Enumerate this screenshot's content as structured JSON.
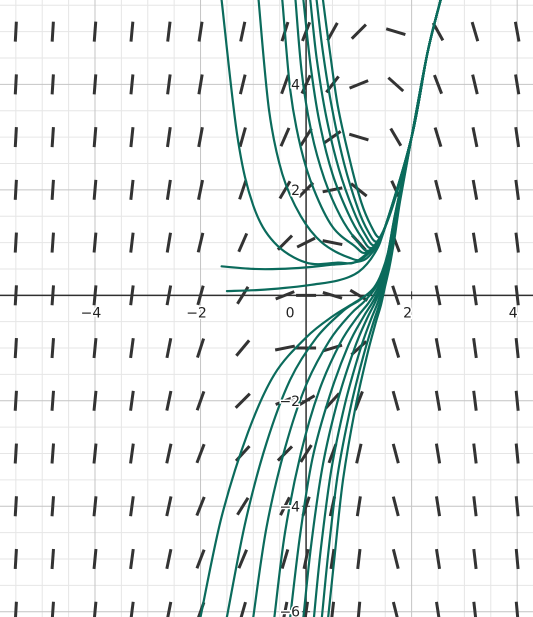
{
  "colors": {
    "background": "#ffffff",
    "minor_grid": "#e6e6e6",
    "major_grid": "#c4c4c4",
    "axis": "#303030",
    "slope_segment": "#333333",
    "solution_curve": "#0b6b5c"
  },
  "chart_data": {
    "type": "line",
    "title": "",
    "xlabel": "",
    "ylabel": "",
    "xlim": [
      -5.8,
      4.3
    ],
    "ylim": [
      -6.1,
      5.6
    ],
    "grid": true,
    "minor_grid_step": 0.5,
    "major_grid_step": 2,
    "x_ticks": [
      -4,
      -2,
      0,
      2,
      4
    ],
    "y_ticks": [
      -6,
      -4,
      -2,
      2,
      4
    ],
    "x_tick_labels": [
      "−4",
      "−2",
      "0",
      "2",
      "4"
    ],
    "y_tick_labels": [
      "−6",
      "−4",
      "−2",
      "2",
      "4"
    ],
    "slope_field": {
      "columns_x": [
        -5.5,
        -4.8,
        -4.0,
        -3.3,
        -2.6,
        -2.0,
        -1.2,
        -0.4,
        0.0,
        0.5,
        1.0,
        1.7,
        2.5,
        3.2,
        4.0
      ],
      "rows_y": [
        5.0,
        4.0,
        3.0,
        2.0,
        1.0,
        0.0,
        -1.0,
        -2.0,
        -3.0,
        -4.0,
        -5.0,
        -6.0
      ],
      "slopes": [
        [
          18.9,
          16.5,
          13.5,
          10.8,
          8.4,
          6.6,
          4.7,
          3.2,
          2.6,
          1.8,
          1.0,
          -0.3,
          -1.8,
          -3.4,
          -5.5
        ],
        [
          18.4,
          15.9,
          12.9,
          10.2,
          7.8,
          6.0,
          4.1,
          2.8,
          2.2,
          1.3,
          0.4,
          -0.9,
          -2.6,
          -4.2,
          -6.2
        ],
        [
          17.9,
          15.3,
          12.3,
          9.6,
          7.2,
          5.4,
          3.6,
          2.3,
          1.6,
          0.7,
          -0.3,
          -1.7,
          -3.3,
          -5.0,
          -7.0
        ],
        [
          17.5,
          14.8,
          11.8,
          9.0,
          6.6,
          4.8,
          3.0,
          1.7,
          1.0,
          0.2,
          -0.8,
          -2.2,
          -3.9,
          -5.6,
          -7.7
        ],
        [
          17.1,
          14.3,
          11.3,
          8.4,
          6.0,
          4.2,
          2.3,
          1.0,
          0.5,
          -0.2,
          -1.1,
          -2.6,
          -4.4,
          -6.3,
          -8.4
        ],
        [
          16.7,
          13.9,
          10.8,
          7.9,
          5.5,
          3.6,
          1.6,
          0.4,
          0.0,
          -0.3,
          -0.6,
          -3.0,
          -5.0,
          -6.9,
          -9.1
        ],
        [
          16.5,
          13.6,
          10.5,
          7.5,
          5.1,
          3.1,
          1.2,
          0.2,
          0.0,
          0.3,
          0.9,
          -3.3,
          -5.5,
          -7.4,
          -9.6
        ],
        [
          16.4,
          13.4,
          10.3,
          7.3,
          4.8,
          2.8,
          1.0,
          0.4,
          0.6,
          1.1,
          2.6,
          -3.6,
          -5.9,
          -7.9,
          -10.1
        ],
        [
          16.5,
          13.4,
          10.2,
          7.2,
          4.6,
          2.6,
          1.1,
          1.0,
          1.6,
          2.7,
          4.4,
          -3.8,
          -6.2,
          -8.2,
          -10.5
        ],
        [
          16.7,
          13.6,
          10.3,
          7.3,
          4.6,
          2.5,
          1.6,
          2.0,
          3.0,
          4.5,
          6.5,
          -3.9,
          -6.4,
          -8.5,
          -10.8
        ],
        [
          17.1,
          13.9,
          10.6,
          7.5,
          4.8,
          2.6,
          2.4,
          3.4,
          4.8,
          6.6,
          8.8,
          -4.0,
          -6.5,
          -8.7,
          -11.0
        ],
        [
          17.6,
          14.4,
          11.0,
          7.9,
          5.1,
          2.8,
          3.5,
          5.1,
          6.9,
          9.0,
          11.3,
          -4.0,
          -6.6,
          -8.8,
          -11.2
        ]
      ]
    },
    "series": [
      {
        "points": [
          [
            -1.6,
            5.6
          ],
          [
            -1.3,
            3.0
          ],
          [
            -1.0,
            1.7
          ],
          [
            -0.6,
            1.0
          ],
          [
            0.0,
            0.62
          ],
          [
            0.6,
            0.62
          ],
          [
            1.0,
            0.67
          ],
          [
            1.5,
            1.3
          ],
          [
            2.0,
            3.0
          ],
          [
            2.3,
            4.6
          ],
          [
            2.55,
            5.6
          ]
        ]
      },
      {
        "points": [
          [
            -0.9,
            5.6
          ],
          [
            -0.7,
            3.5
          ],
          [
            -0.45,
            2.3
          ],
          [
            -0.1,
            1.5
          ],
          [
            0.3,
            1.0
          ],
          [
            0.8,
            0.72
          ],
          [
            1.1,
            0.72
          ],
          [
            1.5,
            1.3
          ],
          [
            2.0,
            3.0
          ],
          [
            2.3,
            4.6
          ],
          [
            2.55,
            5.6
          ]
        ]
      },
      {
        "points": [
          [
            -0.45,
            5.6
          ],
          [
            -0.3,
            3.9
          ],
          [
            -0.1,
            2.8
          ],
          [
            0.15,
            2.0
          ],
          [
            0.5,
            1.3
          ],
          [
            0.9,
            0.95
          ],
          [
            1.15,
            0.82
          ],
          [
            1.5,
            1.3
          ],
          [
            2.0,
            3.0
          ],
          [
            2.3,
            4.6
          ],
          [
            2.55,
            5.6
          ]
        ]
      },
      {
        "points": [
          [
            -0.2,
            5.6
          ],
          [
            -0.08,
            4.2
          ],
          [
            0.1,
            3.1
          ],
          [
            0.35,
            2.2
          ],
          [
            0.65,
            1.5
          ],
          [
            0.95,
            1.05
          ],
          [
            1.2,
            0.85
          ],
          [
            1.5,
            1.3
          ],
          [
            2.0,
            3.0
          ],
          [
            2.3,
            4.6
          ],
          [
            2.55,
            5.6
          ]
        ]
      },
      {
        "points": [
          [
            -0.05,
            5.6
          ],
          [
            0.08,
            4.4
          ],
          [
            0.25,
            3.3
          ],
          [
            0.5,
            2.3
          ],
          [
            0.8,
            1.55
          ],
          [
            1.05,
            1.1
          ],
          [
            1.25,
            0.9
          ],
          [
            1.5,
            1.3
          ],
          [
            2.0,
            3.0
          ],
          [
            2.3,
            4.6
          ],
          [
            2.55,
            5.6
          ]
        ]
      },
      {
        "points": [
          [
            0.08,
            5.6
          ],
          [
            0.2,
            4.5
          ],
          [
            0.38,
            3.4
          ],
          [
            0.62,
            2.4
          ],
          [
            0.9,
            1.6
          ],
          [
            1.12,
            1.15
          ],
          [
            1.3,
            0.95
          ],
          [
            1.5,
            1.3
          ],
          [
            2.0,
            3.0
          ],
          [
            2.3,
            4.6
          ],
          [
            2.55,
            5.6
          ]
        ]
      },
      {
        "points": [
          [
            0.2,
            5.6
          ],
          [
            0.32,
            4.6
          ],
          [
            0.5,
            3.5
          ],
          [
            0.72,
            2.5
          ],
          [
            0.98,
            1.65
          ],
          [
            1.18,
            1.2
          ],
          [
            1.34,
            1.02
          ],
          [
            1.5,
            1.3
          ],
          [
            2.0,
            3.0
          ],
          [
            2.3,
            4.6
          ],
          [
            2.55,
            5.6
          ]
        ]
      },
      {
        "points": [
          [
            0.32,
            5.6
          ],
          [
            0.44,
            4.7
          ],
          [
            0.6,
            3.6
          ],
          [
            0.82,
            2.6
          ],
          [
            1.05,
            1.75
          ],
          [
            1.24,
            1.3
          ],
          [
            1.38,
            1.1
          ],
          [
            1.5,
            1.3
          ],
          [
            2.0,
            3.0
          ],
          [
            2.3,
            4.6
          ],
          [
            2.55,
            5.6
          ]
        ]
      },
      {
        "points": [
          [
            -1.5,
            0.08
          ],
          [
            -0.9,
            0.1
          ],
          [
            -0.4,
            0.14
          ],
          [
            0.1,
            0.2
          ],
          [
            0.6,
            0.28
          ],
          [
            1.0,
            0.45
          ],
          [
            1.3,
            0.8
          ],
          [
            1.5,
            1.3
          ],
          [
            2.0,
            3.0
          ],
          [
            2.3,
            4.6
          ],
          [
            2.55,
            5.6
          ]
        ]
      },
      {
        "points": [
          [
            -1.6,
            0.55
          ],
          [
            -1.0,
            0.5
          ],
          [
            -0.5,
            0.5
          ],
          [
            0.0,
            0.53
          ],
          [
            0.5,
            0.58
          ],
          [
            0.9,
            0.62
          ],
          [
            1.2,
            0.75
          ],
          [
            1.5,
            1.3
          ],
          [
            2.0,
            3.0
          ],
          [
            2.3,
            4.6
          ],
          [
            2.55,
            5.6
          ]
        ]
      },
      {
        "points": [
          [
            -2.0,
            -6.1
          ],
          [
            -1.6,
            -4.2
          ],
          [
            -1.1,
            -2.6
          ],
          [
            -0.6,
            -1.5
          ],
          [
            0.0,
            -0.8
          ],
          [
            0.5,
            -0.4
          ],
          [
            0.9,
            -0.15
          ],
          [
            1.2,
            0.05
          ],
          [
            1.4,
            0.3
          ],
          [
            1.55,
            0.8
          ],
          [
            1.7,
            1.6
          ],
          [
            2.0,
            3.0
          ],
          [
            2.3,
            4.6
          ],
          [
            2.55,
            5.6
          ]
        ]
      },
      {
        "points": [
          [
            -1.5,
            -6.1
          ],
          [
            -1.15,
            -4.3
          ],
          [
            -0.75,
            -2.8
          ],
          [
            -0.3,
            -1.6
          ],
          [
            0.2,
            -0.8
          ],
          [
            0.7,
            -0.3
          ],
          [
            1.0,
            -0.1
          ],
          [
            1.25,
            0.1
          ],
          [
            1.4,
            0.35
          ],
          [
            1.55,
            0.8
          ],
          [
            1.7,
            1.6
          ],
          [
            2.0,
            3.0
          ],
          [
            2.3,
            4.6
          ],
          [
            2.55,
            5.6
          ]
        ]
      },
      {
        "points": [
          [
            -1.0,
            -6.1
          ],
          [
            -0.75,
            -4.4
          ],
          [
            -0.4,
            -2.9
          ],
          [
            0.0,
            -1.7
          ],
          [
            0.45,
            -0.85
          ],
          [
            0.85,
            -0.35
          ],
          [
            1.1,
            -0.12
          ],
          [
            1.3,
            0.12
          ],
          [
            1.45,
            0.4
          ],
          [
            1.58,
            0.85
          ],
          [
            1.72,
            1.65
          ],
          [
            2.0,
            3.0
          ],
          [
            2.3,
            4.6
          ],
          [
            2.55,
            5.6
          ]
        ]
      },
      {
        "points": [
          [
            -0.6,
            -6.1
          ],
          [
            -0.4,
            -4.5
          ],
          [
            -0.1,
            -3.0
          ],
          [
            0.25,
            -1.8
          ],
          [
            0.65,
            -0.9
          ],
          [
            0.98,
            -0.4
          ],
          [
            1.18,
            -0.15
          ],
          [
            1.35,
            0.12
          ],
          [
            1.48,
            0.42
          ],
          [
            1.6,
            0.9
          ],
          [
            1.73,
            1.65
          ],
          [
            2.0,
            3.0
          ],
          [
            2.3,
            4.6
          ],
          [
            2.55,
            5.6
          ]
        ]
      },
      {
        "points": [
          [
            -0.3,
            -6.1
          ],
          [
            -0.12,
            -4.6
          ],
          [
            0.12,
            -3.1
          ],
          [
            0.45,
            -1.9
          ],
          [
            0.8,
            -0.95
          ],
          [
            1.08,
            -0.42
          ],
          [
            1.25,
            -0.15
          ],
          [
            1.4,
            0.15
          ],
          [
            1.5,
            0.45
          ],
          [
            1.62,
            0.95
          ],
          [
            1.74,
            1.7
          ],
          [
            2.0,
            3.0
          ],
          [
            2.3,
            4.6
          ],
          [
            2.55,
            5.6
          ]
        ]
      },
      {
        "points": [
          [
            -0.05,
            -6.1
          ],
          [
            0.1,
            -4.7
          ],
          [
            0.32,
            -3.2
          ],
          [
            0.6,
            -2.0
          ],
          [
            0.92,
            -1.0
          ],
          [
            1.15,
            -0.45
          ],
          [
            1.3,
            -0.15
          ],
          [
            1.42,
            0.15
          ],
          [
            1.52,
            0.48
          ],
          [
            1.63,
            0.98
          ],
          [
            1.75,
            1.72
          ],
          [
            2.0,
            3.0
          ],
          [
            2.3,
            4.6
          ],
          [
            2.55,
            5.6
          ]
        ]
      },
      {
        "points": [
          [
            0.15,
            -6.1
          ],
          [
            0.28,
            -4.8
          ],
          [
            0.48,
            -3.3
          ],
          [
            0.74,
            -2.05
          ],
          [
            1.02,
            -1.05
          ],
          [
            1.22,
            -0.48
          ],
          [
            1.35,
            -0.16
          ],
          [
            1.45,
            0.16
          ],
          [
            1.54,
            0.5
          ],
          [
            1.64,
            1.0
          ],
          [
            1.76,
            1.74
          ],
          [
            2.0,
            3.0
          ],
          [
            2.3,
            4.6
          ],
          [
            2.55,
            5.6
          ]
        ]
      },
      {
        "points": [
          [
            0.3,
            -6.1
          ],
          [
            0.42,
            -4.9
          ],
          [
            0.6,
            -3.4
          ],
          [
            0.85,
            -2.1
          ],
          [
            1.1,
            -1.1
          ],
          [
            1.28,
            -0.5
          ],
          [
            1.39,
            -0.17
          ],
          [
            1.48,
            0.17
          ],
          [
            1.56,
            0.52
          ],
          [
            1.66,
            1.02
          ],
          [
            1.77,
            1.76
          ],
          [
            2.0,
            3.0
          ],
          [
            2.3,
            4.6
          ],
          [
            2.55,
            5.6
          ]
        ]
      },
      {
        "points": [
          [
            0.42,
            -6.1
          ],
          [
            0.54,
            -4.95
          ],
          [
            0.7,
            -3.5
          ],
          [
            0.93,
            -2.15
          ],
          [
            1.16,
            -1.12
          ],
          [
            1.32,
            -0.52
          ],
          [
            1.42,
            -0.18
          ],
          [
            1.5,
            0.18
          ],
          [
            1.58,
            0.54
          ],
          [
            1.67,
            1.04
          ],
          [
            1.78,
            1.78
          ],
          [
            2.0,
            3.0
          ],
          [
            2.3,
            4.6
          ],
          [
            2.55,
            5.6
          ]
        ]
      }
    ]
  }
}
